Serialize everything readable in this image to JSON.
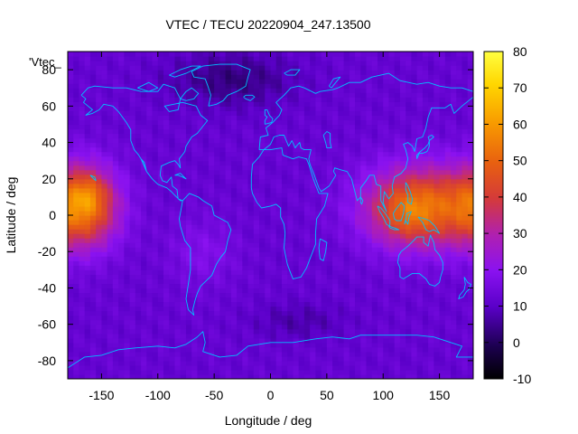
{
  "chart_data": {
    "type": "heatmap",
    "title": "VTEC / TECU 20220904_247.13500",
    "xlabel": "Longitude / deg",
    "ylabel": "Latitude / deg",
    "key_label": "'Vtec_",
    "xlim": [
      -180,
      180
    ],
    "ylim": [
      -90,
      90
    ],
    "colorbar_range": [
      -10,
      80
    ],
    "x_ticks": [
      -150,
      -100,
      -50,
      0,
      50,
      100,
      150
    ],
    "y_ticks": [
      -80,
      -60,
      -40,
      -20,
      0,
      20,
      40,
      60,
      80
    ],
    "colorbar_ticks": [
      -10,
      0,
      10,
      20,
      30,
      40,
      50,
      60,
      70,
      80
    ],
    "colormap": "gnuplot-default",
    "grid": false,
    "background_level_tecu": 12,
    "features": [
      {
        "lon": 135,
        "lat": 5,
        "lon_radius": 50,
        "lat_radius": 22,
        "peak": 38
      },
      {
        "lon": 120,
        "lat": 0,
        "lon_radius": 25,
        "lat_radius": 14,
        "peak": 8
      },
      {
        "lon": -165,
        "lat": 5,
        "lon_radius": 30,
        "lat_radius": 22,
        "peak": 36
      },
      {
        "lon": -160,
        "lat": 12,
        "lon_radius": 14,
        "lat_radius": 10,
        "peak": 8
      },
      {
        "lon": -35,
        "lat": 75,
        "lon_radius": 55,
        "lat_radius": 15,
        "peak": -9
      },
      {
        "lon": 25,
        "lat": -58,
        "lon_radius": 40,
        "lat_radius": 10,
        "peak": -5
      },
      {
        "lon": -60,
        "lat": -20,
        "lon_radius": 30,
        "lat_radius": 18,
        "peak": 6
      }
    ],
    "coastline_color": "#00c0ff"
  }
}
